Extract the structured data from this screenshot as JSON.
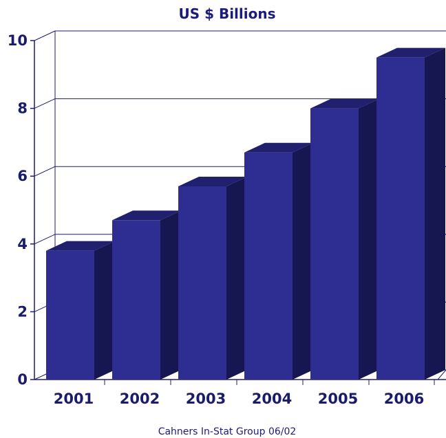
{
  "chart_data": {
    "type": "bar",
    "title": "US $ Billions",
    "categories": [
      "2001",
      "2002",
      "2003",
      "2004",
      "2005",
      "2006"
    ],
    "values": [
      3.8,
      4.7,
      5.7,
      6.7,
      8.0,
      9.5
    ],
    "ylim": [
      0,
      10
    ],
    "yticks": [
      "0",
      "2",
      "4",
      "6",
      "8",
      "10"
    ],
    "grid": true,
    "source": "Cahners In-Stat Group 06/02",
    "colors": {
      "bar_front": "#2e2e92",
      "bar_top": "#20206e",
      "bar_side": "#161650",
      "axis": "#1b1b6e",
      "text": "#1b1b7a"
    }
  }
}
